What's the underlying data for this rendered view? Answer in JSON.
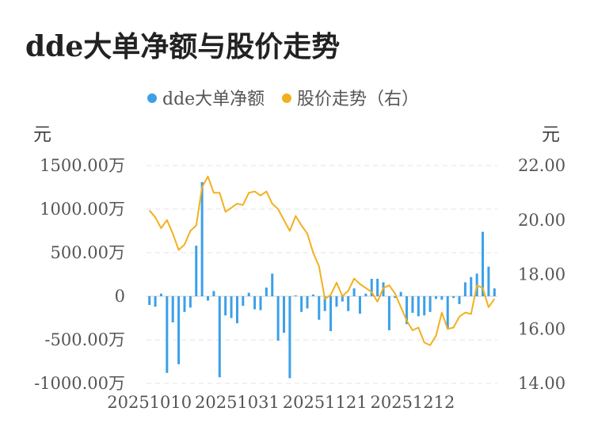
{
  "title": "dde大单净额与股价走势",
  "colors": {
    "bar": "#3ba0e8",
    "line": "#f2b01e",
    "grid": "#e3e3e3"
  },
  "chart_data": {
    "type": "bar+line",
    "title": "dde大单净额与股价走势",
    "legend": {
      "placement": "top-center",
      "items": [
        "dde大单净额",
        "股价走势（右）"
      ]
    },
    "y_left": {
      "unit": "元",
      "ylim": [
        -1000,
        1500
      ],
      "ticks": [
        -1000,
        -500,
        0,
        500,
        1000,
        1500
      ],
      "tick_labels": [
        "-1000.00万",
        "-500.00万",
        "0",
        "500.00万",
        "1000.00万",
        "1500.00万"
      ]
    },
    "y_right": {
      "unit": "元",
      "ylim": [
        14,
        22
      ],
      "ticks": [
        14,
        16,
        18,
        20,
        22
      ],
      "tick_labels": [
        "14.00",
        "16.00",
        "18.00",
        "20.00",
        "22.00"
      ]
    },
    "x_tick_labels": [
      {
        "index": 0,
        "label": "20251010"
      },
      {
        "index": 15,
        "label": "20251031"
      },
      {
        "index": 30,
        "label": "20251121"
      },
      {
        "index": 45,
        "label": "20251212"
      }
    ],
    "grid": true,
    "series": [
      {
        "name": "dde大单净额",
        "type": "bar",
        "axis": "left",
        "values": [
          -100,
          -120,
          30,
          -880,
          -300,
          -780,
          -180,
          -130,
          580,
          1310,
          -50,
          60,
          -930,
          -220,
          -250,
          -310,
          -110,
          40,
          -150,
          -160,
          100,
          260,
          -510,
          -420,
          -940,
          10,
          -180,
          -140,
          20,
          -270,
          -170,
          -400,
          -120,
          -60,
          -170,
          90,
          -200,
          30,
          200,
          200,
          160,
          -390,
          -20,
          50,
          -320,
          -190,
          -230,
          -220,
          -180,
          -30,
          -40,
          -370,
          -20,
          -90,
          160,
          220,
          260,
          740,
          340,
          90
        ]
      },
      {
        "name": "股价走势（右）",
        "type": "line",
        "axis": "right",
        "values": [
          20.35,
          20.1,
          19.7,
          20.0,
          19.5,
          18.9,
          19.1,
          19.6,
          19.8,
          21.2,
          21.6,
          21.0,
          21.0,
          20.3,
          20.45,
          20.6,
          20.55,
          21.0,
          21.05,
          20.9,
          21.05,
          20.6,
          20.4,
          20.0,
          19.6,
          20.15,
          19.8,
          19.5,
          18.8,
          18.3,
          17.1,
          17.25,
          17.7,
          17.2,
          17.4,
          17.85,
          17.65,
          17.5,
          17.35,
          17.0,
          17.5,
          17.6,
          17.3,
          16.8,
          16.3,
          15.95,
          16.05,
          15.5,
          15.4,
          15.75,
          16.6,
          16.0,
          16.05,
          16.45,
          16.6,
          16.55,
          17.6,
          17.5,
          16.8,
          17.1
        ]
      }
    ]
  }
}
